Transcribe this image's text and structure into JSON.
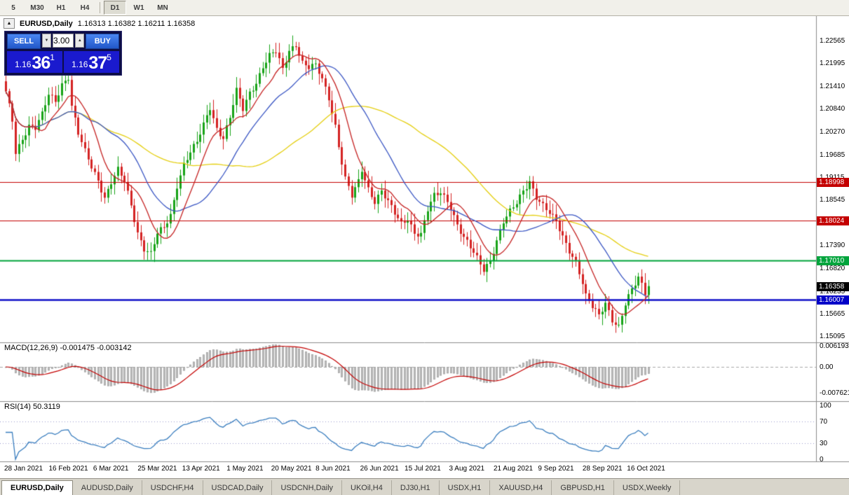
{
  "toolbar": {
    "groups": [
      {
        "items": [
          "5",
          "M30",
          "H1",
          "H4"
        ]
      },
      {
        "items": [
          "D1",
          "W1",
          "MN"
        ]
      }
    ],
    "active": "D1"
  },
  "chart_header": {
    "symbol": "EURUSD,Daily",
    "ohlc": "1.16313 1.16382 1.16211 1.16358"
  },
  "icons": {
    "collapse": "▲",
    "spinner_up": "▲",
    "spinner_down": "▼"
  },
  "trade_panel": {
    "sell_label": "SELL",
    "buy_label": "BUY",
    "volume": "3.00",
    "sell_price": {
      "base": "1.16",
      "big": "36",
      "sup": "1"
    },
    "buy_price": {
      "base": "1.16",
      "big": "37",
      "sup": "5"
    }
  },
  "price_axis": {
    "labels": [
      "1.22565",
      "1.21995",
      "1.21410",
      "1.20840",
      "1.20270",
      "1.19685",
      "1.19115",
      "1.18545",
      "1.17960",
      "1.17390",
      "1.16820",
      "1.16235",
      "1.15665",
      "1.15095"
    ],
    "badges": [
      {
        "text": "1.18998",
        "price": 1.18998,
        "bg": "#c40000"
      },
      {
        "text": "1.18024",
        "price": 1.18024,
        "bg": "#c40000"
      },
      {
        "text": "1.17010",
        "price": 1.1701,
        "bg": "#00a43c"
      },
      {
        "text": "1.16358",
        "price": 1.16358,
        "bg": "#000000"
      },
      {
        "text": "1.16007",
        "price": 1.16007,
        "bg": "#0000c8"
      }
    ]
  },
  "macd_panel": {
    "label": "MACD(12,26,9) -0.001475 -0.003142",
    "axis": [
      "0.006193",
      "0.00",
      "-0.007621"
    ]
  },
  "rsi_panel": {
    "label": "RSI(14) 50.3119",
    "axis": [
      "100",
      "70",
      "30",
      "0"
    ]
  },
  "tabs": {
    "active_index": 0,
    "items": [
      "EURUSD,Daily",
      "AUDUSD,Daily",
      "USDCHF,H4",
      "USDCAD,Daily",
      "USDCNH,Daily",
      "UKOil,H4",
      "DJ30,H1",
      "USDX,H1",
      "XAUUSD,H4",
      "GBPUSD,H1",
      "USDX,Weekly"
    ]
  },
  "chart_data": {
    "type": "candlestick",
    "symbol": "EURUSD",
    "timeframe": "Daily",
    "bars_visible": 196,
    "ohlc_current": {
      "open": 1.16313,
      "high": 1.16382,
      "low": 1.16211,
      "close": 1.16358
    },
    "y_axis": {
      "min": 1.15095,
      "max": 1.22565,
      "ticks": [
        1.22565,
        1.21995,
        1.2141,
        1.2084,
        1.2027,
        1.19685,
        1.19115,
        1.18545,
        1.1796,
        1.1739,
        1.1682,
        1.16235,
        1.15665,
        1.15095
      ]
    },
    "x_labels": [
      "28 Jan 2021",
      "16 Feb 2021",
      "6 Mar 2021",
      "25 Mar 2021",
      "13 Apr 2021",
      "1 May 2021",
      "20 May 2021",
      "8 Jun 2021",
      "26 Jun 2021",
      "15 Jul 2021",
      "3 Aug 2021",
      "21 Aug 2021",
      "9 Sep 2021",
      "28 Sep 2021",
      "16 Oct 2021"
    ],
    "price_keypoints": [
      [
        0,
        1.2125
      ],
      [
        2,
        1.2055
      ],
      [
        3,
        1.1975
      ],
      [
        5,
        1.201
      ],
      [
        7,
        1.2042
      ],
      [
        9,
        1.2035
      ],
      [
        11,
        1.2068
      ],
      [
        13,
        1.212
      ],
      [
        15,
        1.2105
      ],
      [
        17,
        1.2148
      ],
      [
        19,
        1.2165
      ],
      [
        20,
        1.209
      ],
      [
        22,
        1.202
      ],
      [
        24,
        1.1975
      ],
      [
        26,
        1.1938
      ],
      [
        28,
        1.1905
      ],
      [
        30,
        1.186
      ],
      [
        32,
        1.1898
      ],
      [
        34,
        1.1928
      ],
      [
        36,
        1.19
      ],
      [
        38,
        1.184
      ],
      [
        40,
        1.1772
      ],
      [
        42,
        1.1732
      ],
      [
        44,
        1.1718
      ],
      [
        46,
        1.1768
      ],
      [
        48,
        1.1782
      ],
      [
        50,
        1.1815
      ],
      [
        52,
        1.1892
      ],
      [
        54,
        1.1945
      ],
      [
        56,
        1.1975
      ],
      [
        58,
        1.1998
      ],
      [
        60,
        1.2042
      ],
      [
        62,
        1.2088
      ],
      [
        64,
        1.2035
      ],
      [
        66,
        1.2012
      ],
      [
        68,
        1.2062
      ],
      [
        70,
        1.2128
      ],
      [
        72,
        1.2082
      ],
      [
        74,
        1.2125
      ],
      [
        76,
        1.2152
      ],
      [
        78,
        1.2192
      ],
      [
        80,
        1.2218
      ],
      [
        82,
        1.2228
      ],
      [
        84,
        1.2182
      ],
      [
        86,
        1.2232
      ],
      [
        88,
        1.2248
      ],
      [
        90,
        1.2202
      ],
      [
        92,
        1.2188
      ],
      [
        94,
        1.2192
      ],
      [
        96,
        1.2158
      ],
      [
        98,
        1.2112
      ],
      [
        100,
        1.2042
      ],
      [
        101,
        1.1992
      ],
      [
        103,
        1.1908
      ],
      [
        105,
        1.1862
      ],
      [
        107,
        1.1898
      ],
      [
        108,
        1.1928
      ],
      [
        110,
        1.1882
      ],
      [
        112,
        1.1852
      ],
      [
        114,
        1.1878
      ],
      [
        116,
        1.1848
      ],
      [
        118,
        1.1818
      ],
      [
        120,
        1.1792
      ],
      [
        122,
        1.1808
      ],
      [
        124,
        1.1772
      ],
      [
        126,
        1.1768
      ],
      [
        128,
        1.1828
      ],
      [
        130,
        1.1862
      ],
      [
        132,
        1.1872
      ],
      [
        134,
        1.1852
      ],
      [
        135,
        1.1838
      ],
      [
        137,
        1.1792
      ],
      [
        139,
        1.1758
      ],
      [
        141,
        1.1732
      ],
      [
        143,
        1.1705
      ],
      [
        145,
        1.1678
      ],
      [
        147,
        1.1702
      ],
      [
        149,
        1.1752
      ],
      [
        151,
        1.1798
      ],
      [
        153,
        1.1822
      ],
      [
        155,
        1.1845
      ],
      [
        157,
        1.1878
      ],
      [
        159,
        1.1902
      ],
      [
        161,
        1.1862
      ],
      [
        163,
        1.1838
      ],
      [
        165,
        1.1818
      ],
      [
        167,
        1.1798
      ],
      [
        169,
        1.1762
      ],
      [
        171,
        1.1728
      ],
      [
        173,
        1.1698
      ],
      [
        175,
        1.1642
      ],
      [
        176,
        1.1608
      ],
      [
        178,
        1.1582
      ],
      [
        180,
        1.1562
      ],
      [
        182,
        1.1596
      ],
      [
        184,
        1.1552
      ],
      [
        186,
        1.1532
      ],
      [
        188,
        1.1588
      ],
      [
        190,
        1.1625
      ],
      [
        192,
        1.1658
      ],
      [
        193,
        1.1642
      ],
      [
        194,
        1.1622
      ],
      [
        195,
        1.16358
      ]
    ],
    "horizontal_lines": [
      {
        "price": 1.18998,
        "color": "#c40000",
        "width": 1.2
      },
      {
        "price": 1.18024,
        "color": "#c40000",
        "width": 1.2
      },
      {
        "price": 1.1701,
        "color": "#00a43c",
        "width": 2
      },
      {
        "price": 1.16007,
        "color": "#0f0fc8",
        "width": 2.4
      }
    ],
    "moving_averages": [
      {
        "period": 55,
        "color": "#e5cf10"
      },
      {
        "period": 24,
        "color": "#3a56c4"
      },
      {
        "period": 10,
        "color": "#c62424"
      }
    ],
    "candle_colors": {
      "up": "#17a317",
      "down": "#d42222"
    },
    "indicators": [
      {
        "name": "MACD",
        "params": [
          12,
          26,
          9
        ],
        "current_values": [
          -0.001475,
          -0.003142
        ],
        "histogram_color": "#bfbfbf",
        "signal_color": "#c40000",
        "axis": [
          0.006193,
          0.0,
          -0.007621
        ]
      },
      {
        "name": "RSI",
        "params": [
          14
        ],
        "current_value": 50.3119,
        "line_color": "#3a7ebf",
        "levels": [
          70,
          30
        ],
        "axis": [
          100,
          70,
          30,
          0
        ]
      }
    ]
  }
}
